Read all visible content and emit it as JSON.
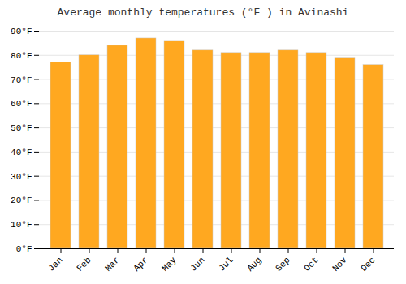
{
  "chart_data": {
    "type": "bar",
    "title": "Average monthly temperatures (°F ) in Avinashi",
    "categories": [
      "Jan",
      "Feb",
      "Mar",
      "Apr",
      "May",
      "Jun",
      "Jul",
      "Aug",
      "Sep",
      "Oct",
      "Nov",
      "Dec"
    ],
    "values": [
      77,
      80,
      84,
      87,
      86,
      82,
      81,
      81,
      82,
      81,
      79,
      76
    ],
    "color": "#FFA820",
    "ylim": [
      0,
      90
    ],
    "yticks": [
      {
        "value": 0,
        "label": "0°F"
      },
      {
        "value": 10,
        "label": "10°F"
      },
      {
        "value": 20,
        "label": "20°F"
      },
      {
        "value": 30,
        "label": "30°F"
      },
      {
        "value": 40,
        "label": "40°F"
      },
      {
        "value": 50,
        "label": "50°F"
      },
      {
        "value": 60,
        "label": "60°F"
      },
      {
        "value": 70,
        "label": "70°F"
      },
      {
        "value": 80,
        "label": "80°F"
      },
      {
        "value": 90,
        "label": "90°F"
      }
    ],
    "grid": true
  }
}
